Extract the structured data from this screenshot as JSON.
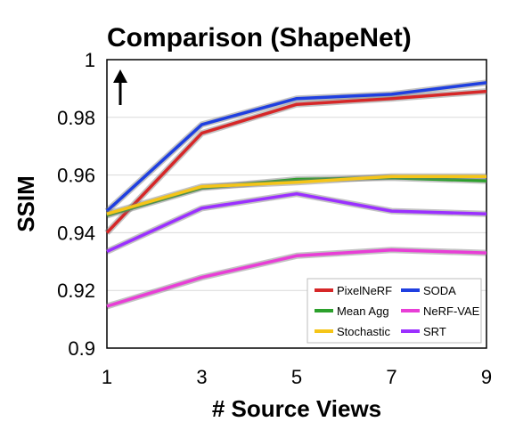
{
  "chart_data": {
    "type": "line",
    "title": "Comparison (ShapeNet)",
    "xlabel": "# Source Views",
    "ylabel": "SSIM",
    "x": [
      1,
      3,
      5,
      7,
      9
    ],
    "xticks": [
      "1",
      "3",
      "5",
      "7",
      "9"
    ],
    "xlim": [
      1,
      9
    ],
    "ylim": [
      0.9,
      1.0
    ],
    "yticks": [
      "0.9",
      "0.92",
      "0.94",
      "0.96",
      "0.98",
      "1"
    ],
    "ytick_values": [
      0.9,
      0.92,
      0.94,
      0.96,
      0.98,
      1.0
    ],
    "arrow": "up",
    "grid": "horizontal",
    "legend_position": "bottom-right",
    "series": [
      {
        "name": "PixelNeRF",
        "color": "#d62728",
        "values": [
          0.94,
          0.9745,
          0.9845,
          0.9865,
          0.989
        ]
      },
      {
        "name": "SODA",
        "color": "#1f3fe0",
        "values": [
          0.9475,
          0.9775,
          0.9865,
          0.988,
          0.992
        ]
      },
      {
        "name": "Mean Agg",
        "color": "#2ca02c",
        "values": [
          0.946,
          0.9555,
          0.9585,
          0.959,
          0.958
        ]
      },
      {
        "name": "NeRF-VAE",
        "color": "#e83ed6",
        "values": [
          0.9145,
          0.9245,
          0.932,
          0.934,
          0.933
        ]
      },
      {
        "name": "Stochastic",
        "color": "#f5c518",
        "values": [
          0.9465,
          0.956,
          0.9575,
          0.9595,
          0.9595
        ]
      },
      {
        "name": "SRT",
        "color": "#9b30ff",
        "values": [
          0.9335,
          0.9485,
          0.9535,
          0.9475,
          0.9465
        ]
      }
    ]
  }
}
